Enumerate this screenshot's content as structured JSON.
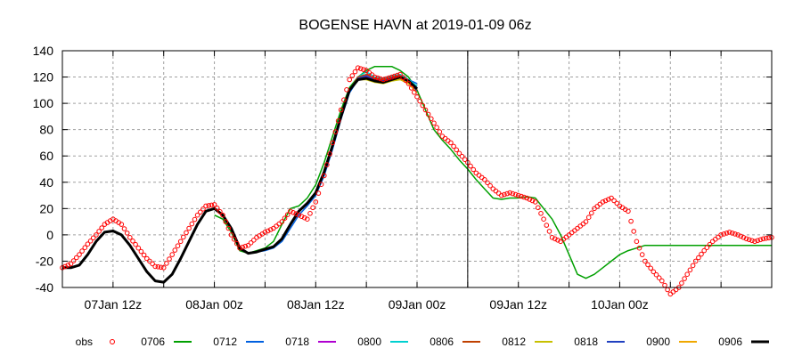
{
  "chart_data": {
    "type": "line",
    "title": "BOGENSE HAVN at 2019-01-09 06z",
    "xlabel": "",
    "ylabel": "",
    "x_unit": "hours since 2019-01-07 00z",
    "xlim": [
      6,
      90
    ],
    "ylim": [
      -40,
      140
    ],
    "yticks": [
      -40,
      -20,
      0,
      20,
      40,
      60,
      80,
      100,
      120,
      140
    ],
    "xticks": [
      {
        "x": 12,
        "label": "07Jan 12z"
      },
      {
        "x": 24,
        "label": "08Jan 00z"
      },
      {
        "x": 36,
        "label": "08Jan 12z"
      },
      {
        "x": 48,
        "label": "09Jan 00z"
      },
      {
        "x": 60,
        "label": "09Jan 12z"
      },
      {
        "x": 72,
        "label": "10Jan 00z"
      }
    ],
    "analysis_time_line_x": 54,
    "grid": true,
    "legend_position": "bottom",
    "series": [
      {
        "name": "obs",
        "style": "marker",
        "color": "#ff0000",
        "x": [
          6,
          7,
          8,
          9,
          10,
          11,
          12,
          13,
          14,
          15,
          16,
          17,
          18,
          19,
          20,
          21,
          22,
          23,
          24,
          25,
          26,
          27,
          28,
          29,
          30,
          31,
          32,
          33,
          34,
          35,
          36,
          37,
          38,
          39,
          40,
          41,
          42,
          43,
          44,
          45,
          46,
          47,
          48,
          49,
          50,
          51,
          52,
          53,
          54,
          55,
          56,
          57,
          58,
          59,
          60,
          61,
          62,
          63,
          64,
          65,
          66,
          67,
          68,
          69,
          70,
          71,
          72,
          73,
          74,
          75,
          76,
          77,
          78,
          79,
          80,
          81,
          82,
          83,
          84,
          85,
          86,
          87,
          88,
          89,
          90
        ],
        "values": [
          -25,
          -22,
          -15,
          -7,
          0,
          8,
          12,
          8,
          -2,
          -10,
          -18,
          -24,
          -25,
          -15,
          -5,
          5,
          15,
          22,
          23,
          15,
          0,
          -10,
          -8,
          -2,
          2,
          5,
          10,
          18,
          15,
          12,
          25,
          45,
          70,
          95,
          118,
          127,
          125,
          120,
          118,
          120,
          122,
          115,
          105,
          95,
          85,
          75,
          70,
          62,
          55,
          47,
          42,
          35,
          30,
          32,
          30,
          28,
          25,
          12,
          -2,
          -5,
          0,
          5,
          10,
          20,
          25,
          28,
          22,
          18,
          -5,
          -20,
          -28,
          -35,
          -45,
          -40,
          -30,
          -20,
          -12,
          -5,
          0,
          2,
          0,
          -3,
          -5,
          -3,
          -2
        ]
      },
      {
        "name": "0706",
        "style": "line",
        "color": "#00a000",
        "width": 1.5,
        "x": [
          24,
          25,
          26,
          27,
          28,
          29,
          30,
          31,
          32,
          33,
          34,
          35,
          36,
          37,
          38,
          39,
          40,
          41,
          42,
          43,
          44,
          45,
          46,
          47,
          48,
          49,
          50,
          51,
          52,
          53,
          54,
          55,
          56,
          57,
          58,
          59,
          60,
          61,
          62,
          63,
          64,
          65,
          66,
          67,
          68,
          69,
          70,
          71,
          72,
          73,
          74,
          75,
          76,
          77,
          78,
          79,
          80,
          81,
          82,
          83,
          84,
          85,
          86,
          87,
          88,
          89,
          90
        ],
        "values": [
          15,
          12,
          2,
          -12,
          -14,
          -12,
          -10,
          -5,
          8,
          20,
          22,
          28,
          38,
          55,
          75,
          95,
          112,
          120,
          125,
          128,
          128,
          128,
          125,
          120,
          110,
          95,
          80,
          72,
          65,
          57,
          50,
          42,
          35,
          28,
          27,
          28,
          28,
          29,
          28,
          20,
          12,
          0,
          -15,
          -30,
          -33,
          -30,
          -25,
          -20,
          -15,
          -12,
          -10,
          -8,
          -8,
          -8,
          -8,
          -8,
          -8,
          -8,
          -8,
          -8,
          -8,
          -8,
          -8,
          -8,
          -8,
          -8,
          -8
        ]
      },
      {
        "name": "0712",
        "style": "line",
        "color": "#0060e0",
        "width": 1.5,
        "x": [
          6,
          7,
          8,
          9,
          10,
          11,
          12,
          13,
          14,
          15,
          16,
          17,
          18,
          19,
          20,
          21,
          22,
          23,
          24,
          25,
          26,
          27,
          28,
          29,
          30,
          31,
          32,
          33,
          34,
          35,
          36,
          37,
          38,
          39,
          40,
          41,
          42,
          43,
          44,
          45,
          46,
          47,
          48
        ],
        "values": [
          -25,
          -25,
          -23,
          -15,
          -5,
          2,
          3,
          0,
          -8,
          -18,
          -28,
          -35,
          -36,
          -30,
          -18,
          -5,
          8,
          18,
          20,
          15,
          5,
          -10,
          -14,
          -13,
          -12,
          -10,
          -5,
          5,
          15,
          22,
          30,
          45,
          65,
          88,
          108,
          118,
          120,
          118,
          118,
          120,
          122,
          118,
          115
        ]
      },
      {
        "name": "0718",
        "style": "line",
        "color": "#b000d0",
        "width": 1.5,
        "x": [
          6,
          7,
          8,
          9,
          10,
          11,
          12,
          13,
          14,
          15,
          16,
          17,
          18,
          19,
          20,
          21,
          22,
          23,
          24,
          25,
          26,
          27,
          28,
          29,
          30,
          31,
          32,
          33,
          34,
          35,
          36,
          37,
          38,
          39,
          40,
          41,
          42,
          43,
          44,
          45,
          46,
          47,
          48
        ],
        "values": [
          -25,
          -25,
          -23,
          -15,
          -5,
          2,
          3,
          0,
          -8,
          -18,
          -28,
          -35,
          -36,
          -30,
          -18,
          -5,
          8,
          18,
          20,
          15,
          5,
          -10,
          -14,
          -13,
          -11,
          -9,
          -3,
          8,
          18,
          24,
          32,
          48,
          68,
          90,
          110,
          119,
          120,
          118,
          118,
          120,
          121,
          117,
          112
        ]
      },
      {
        "name": "0800",
        "style": "line",
        "color": "#00d0d0",
        "width": 1.5,
        "x": [
          6,
          7,
          8,
          9,
          10,
          11,
          12,
          13,
          14,
          15,
          16,
          17,
          18,
          19,
          20,
          21,
          22,
          23,
          24,
          25,
          26,
          27,
          28,
          29,
          30,
          31,
          32,
          33,
          34,
          35,
          36,
          37,
          38,
          39,
          40,
          41,
          42,
          43,
          44,
          45,
          46,
          47,
          48
        ],
        "values": [
          -25,
          -25,
          -23,
          -15,
          -5,
          2,
          3,
          0,
          -8,
          -18,
          -28,
          -35,
          -36,
          -30,
          -18,
          -5,
          8,
          18,
          20,
          15,
          5,
          -10,
          -14,
          -13,
          -11,
          -9,
          -3,
          8,
          18,
          24,
          32,
          48,
          68,
          90,
          110,
          120,
          124,
          120,
          119,
          121,
          122,
          118,
          113
        ]
      },
      {
        "name": "0806",
        "style": "line",
        "color": "#c04000",
        "width": 1.5,
        "x": [
          6,
          7,
          8,
          9,
          10,
          11,
          12,
          13,
          14,
          15,
          16,
          17,
          18,
          19,
          20,
          21,
          22,
          23,
          24,
          25,
          26,
          27,
          28,
          29,
          30,
          31,
          32,
          33,
          34,
          35,
          36,
          37,
          38,
          39,
          40,
          41,
          42,
          43,
          44,
          45,
          46,
          47,
          48
        ],
        "values": [
          -25,
          -25,
          -23,
          -15,
          -5,
          2,
          3,
          0,
          -8,
          -18,
          -28,
          -35,
          -36,
          -30,
          -18,
          -5,
          8,
          18,
          20,
          15,
          5,
          -10,
          -14,
          -13,
          -11,
          -9,
          -3,
          8,
          18,
          24,
          32,
          48,
          68,
          90,
          110,
          120,
          122,
          119,
          118,
          120,
          121,
          117,
          110
        ]
      },
      {
        "name": "0812",
        "style": "line",
        "color": "#c8c000",
        "width": 1.5,
        "x": [
          6,
          7,
          8,
          9,
          10,
          11,
          12,
          13,
          14,
          15,
          16,
          17,
          18,
          19,
          20,
          21,
          22,
          23,
          24,
          25,
          26,
          27,
          28,
          29,
          30,
          31,
          32,
          33,
          34,
          35,
          36,
          37,
          38,
          39,
          40,
          41,
          42,
          43,
          44,
          45,
          46,
          47,
          48
        ],
        "values": [
          -25,
          -25,
          -23,
          -15,
          -5,
          2,
          3,
          0,
          -8,
          -18,
          -28,
          -35,
          -36,
          -30,
          -18,
          -5,
          8,
          18,
          20,
          15,
          5,
          -10,
          -14,
          -13,
          -11,
          -9,
          -3,
          8,
          18,
          24,
          32,
          48,
          68,
          90,
          110,
          118,
          118,
          116,
          115,
          117,
          118,
          115,
          108
        ]
      },
      {
        "name": "0818",
        "style": "line",
        "color": "#2040c0",
        "width": 1.5,
        "x": [
          6,
          7,
          8,
          9,
          10,
          11,
          12,
          13,
          14,
          15,
          16,
          17,
          18,
          19,
          20,
          21,
          22,
          23,
          24,
          25,
          26,
          27,
          28,
          29,
          30,
          31,
          32,
          33,
          34,
          35,
          36,
          37,
          38,
          39,
          40,
          41,
          42,
          43,
          44,
          45,
          46,
          47,
          48
        ],
        "values": [
          -25,
          -25,
          -23,
          -15,
          -5,
          2,
          3,
          0,
          -8,
          -18,
          -28,
          -35,
          -36,
          -30,
          -18,
          -5,
          8,
          18,
          20,
          15,
          5,
          -10,
          -14,
          -13,
          -11,
          -9,
          -3,
          8,
          18,
          24,
          32,
          48,
          68,
          90,
          110,
          119,
          121,
          118,
          117,
          119,
          120,
          116,
          109
        ]
      },
      {
        "name": "0900",
        "style": "line",
        "color": "#f0a800",
        "width": 1.5,
        "x": [
          6,
          7,
          8,
          9,
          10,
          11,
          12,
          13,
          14,
          15,
          16,
          17,
          18,
          19,
          20,
          21,
          22,
          23,
          24,
          25,
          26,
          27,
          28,
          29,
          30,
          31,
          32,
          33,
          34,
          35,
          36,
          37,
          38,
          39,
          40,
          41,
          42,
          43,
          44,
          45,
          46,
          47,
          48
        ],
        "values": [
          -25,
          -25,
          -23,
          -15,
          -5,
          2,
          3,
          0,
          -8,
          -18,
          -28,
          -35,
          -36,
          -30,
          -18,
          -5,
          8,
          18,
          20,
          15,
          5,
          -10,
          -14,
          -13,
          -11,
          -9,
          -3,
          8,
          18,
          24,
          32,
          48,
          68,
          90,
          110,
          118,
          119,
          117,
          116,
          118,
          119,
          115,
          108
        ]
      },
      {
        "name": "0906",
        "style": "line",
        "color": "#000000",
        "width": 3,
        "x": [
          6,
          7,
          8,
          9,
          10,
          11,
          12,
          13,
          14,
          15,
          16,
          17,
          18,
          19,
          20,
          21,
          22,
          23,
          24,
          25,
          26,
          27,
          28,
          29,
          30,
          31,
          32,
          33,
          34,
          35,
          36,
          37,
          38,
          39,
          40,
          41,
          42,
          43,
          44,
          45,
          46,
          47,
          48
        ],
        "values": [
          -25,
          -25,
          -23,
          -15,
          -5,
          2,
          3,
          0,
          -8,
          -18,
          -28,
          -35,
          -36,
          -30,
          -18,
          -5,
          8,
          18,
          20,
          15,
          5,
          -10,
          -14,
          -13,
          -11,
          -9,
          -3,
          8,
          18,
          24,
          32,
          48,
          68,
          90,
          110,
          118,
          119,
          117,
          116,
          118,
          120,
          117,
          111
        ]
      }
    ]
  }
}
